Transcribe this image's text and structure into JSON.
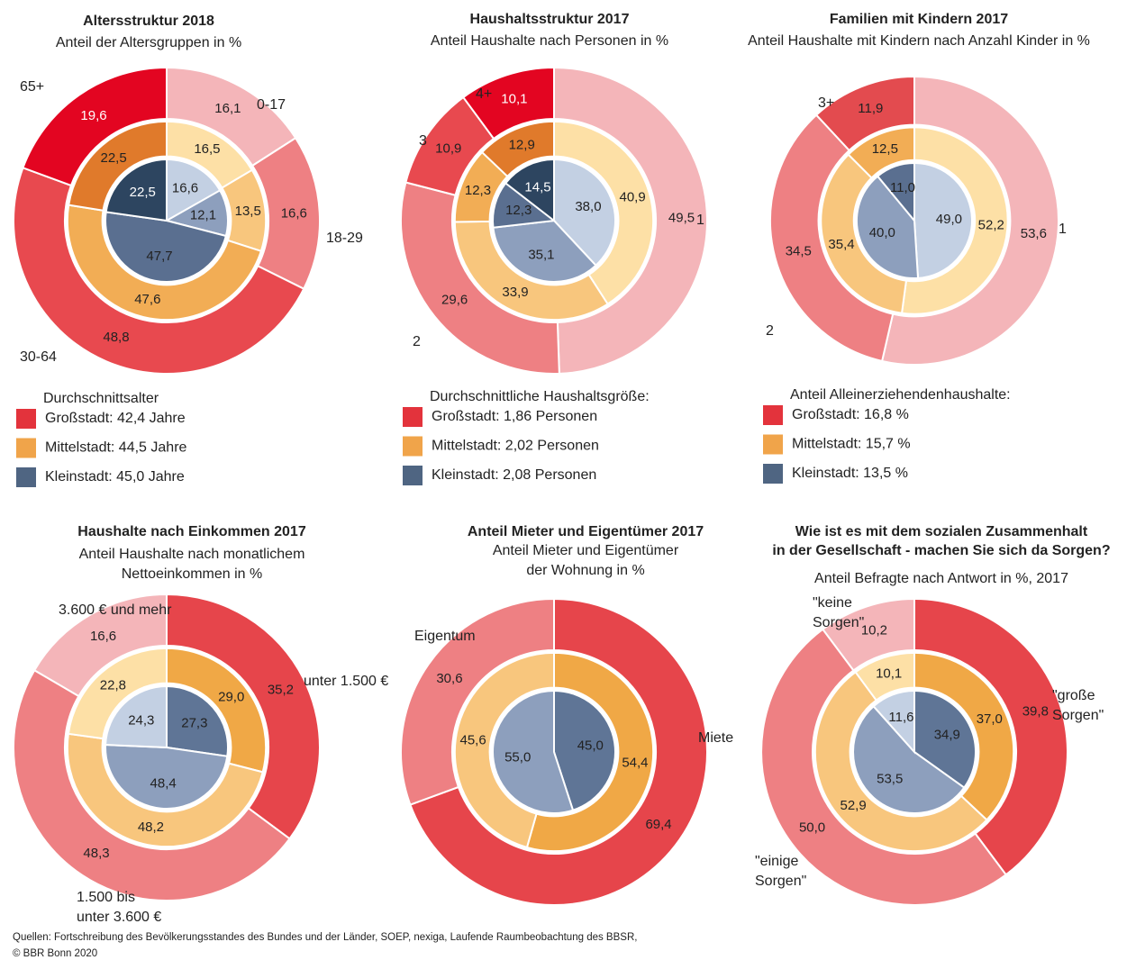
{
  "chart_data": [
    {
      "type": "pie",
      "title": "Altersstruktur 2018",
      "subtitle": "Anteil der Altersgruppen in %",
      "categories": [
        "0-17",
        "18-29",
        "30-64",
        "65+"
      ],
      "legend_title": "Durchschnittsalter",
      "series": [
        {
          "name": "Großstadt: 42,4 Jahre",
          "color": "#e3333c",
          "colors": [
            "#f4b5b9",
            "#ee8083",
            "#e8494f",
            "#e30521"
          ],
          "values": [
            16.1,
            16.6,
            48.8,
            19.6
          ],
          "value_labels": [
            "16,1",
            "16,6",
            "48,8",
            "19,6"
          ]
        },
        {
          "name": "Mittelstadt: 44,5 Jahre",
          "color": "#f0a44a",
          "colors": [
            "#fde0a6",
            "#f8c67d",
            "#f2ad55",
            "#e07a2b"
          ],
          "values": [
            16.5,
            13.5,
            47.6,
            22.5
          ],
          "value_labels": [
            "16,5",
            "13,5",
            "47,6",
            "22,5"
          ]
        },
        {
          "name": "Kleinstadt: 45,0 Jahre",
          "color": "#4f6582",
          "colors": [
            "#c3d0e3",
            "#8d9fbd",
            "#5a6f90",
            "#2d4560"
          ],
          "values": [
            16.6,
            12.1,
            47.7,
            22.5
          ],
          "value_labels": [
            "16,6",
            "12,1",
            "47,7",
            "22,5"
          ]
        }
      ]
    },
    {
      "type": "pie",
      "title": "Haushaltsstruktur 2017",
      "subtitle": "Anteil Haushalte nach Personen in %",
      "categories": [
        "1",
        "2",
        "3",
        "4+"
      ],
      "legend_title": "Durchschnittliche Haushaltsgröße:",
      "series": [
        {
          "name": "Großstadt: 1,86 Personen",
          "color": "#e3333c",
          "colors": [
            "#f4b5b9",
            "#ee8083",
            "#e8494f",
            "#e30521"
          ],
          "values": [
            49.5,
            29.6,
            10.9,
            10.1
          ],
          "value_labels": [
            "49,5",
            "29,6",
            "10,9",
            "10,1"
          ]
        },
        {
          "name": "Mittelstadt: 2,02 Personen",
          "color": "#f0a44a",
          "colors": [
            "#fde0a6",
            "#f8c67d",
            "#f2ad55",
            "#e07a2b"
          ],
          "values": [
            40.9,
            33.9,
            12.3,
            12.9
          ],
          "value_labels": [
            "40,9",
            "33,9",
            "12,3",
            "12,9"
          ]
        },
        {
          "name": "Kleinstadt: 2,08 Personen",
          "color": "#4f6582",
          "colors": [
            "#c3d0e3",
            "#8d9fbd",
            "#5a6f90",
            "#2d4560"
          ],
          "values": [
            38.0,
            35.1,
            12.3,
            14.5
          ],
          "value_labels": [
            "38,0",
            "35,1",
            "12,3",
            "14,5"
          ]
        }
      ]
    },
    {
      "type": "pie",
      "title": "Familien mit Kindern 2017",
      "subtitle": "Anteil Haushalte mit Kindern nach Anzahl Kinder in %",
      "categories": [
        "1",
        "2",
        "3+"
      ],
      "legend_title": "Anteil Alleinerziehendenhaushalte:",
      "series": [
        {
          "name": "Großstadt: 16,8 %",
          "color": "#e3333c",
          "colors": [
            "#f4b5b9",
            "#ee8083",
            "#e34b4f"
          ],
          "values": [
            53.6,
            34.5,
            11.9
          ],
          "value_labels": [
            "53,6",
            "34,5",
            "11,9"
          ]
        },
        {
          "name": "Mittelstadt: 15,7 %",
          "color": "#f0a44a",
          "colors": [
            "#fde0a6",
            "#f8c67d",
            "#f2ad55"
          ],
          "values": [
            52.2,
            35.4,
            12.5
          ],
          "value_labels": [
            "52,2",
            "35,4",
            "12,5"
          ]
        },
        {
          "name": "Kleinstadt: 13,5 %",
          "color": "#4f6582",
          "colors": [
            "#c3d0e3",
            "#8d9fbd",
            "#5a6f90"
          ],
          "values": [
            49.0,
            40.0,
            11.0
          ],
          "value_labels": [
            "49,0",
            "40,0",
            "11,0"
          ]
        }
      ]
    },
    {
      "type": "pie",
      "title": "Haushalte nach Einkommen 2017",
      "subtitle": [
        "Anteil Haushalte nach monatlichem",
        "Nettoeinkommen in %"
      ],
      "categories": [
        "unter 1.500 €",
        [
          "1.500 bis",
          "unter 3.600 €"
        ],
        "3.600 € und mehr"
      ],
      "series": [
        {
          "colors": [
            "#e6454b",
            "#ee8083",
            "#f4b5b9"
          ],
          "values": [
            35.2,
            48.3,
            16.6
          ],
          "value_labels": [
            "35,2",
            "48,3",
            "16,6"
          ]
        },
        {
          "colors": [
            "#f0a846",
            "#f8c67d",
            "#fde0a6"
          ],
          "values": [
            29.0,
            48.2,
            22.8
          ],
          "value_labels": [
            "29,0",
            "48,2",
            "22,8"
          ]
        },
        {
          "colors": [
            "#5f7596",
            "#8d9fbd",
            "#c3d0e3"
          ],
          "values": [
            27.3,
            48.4,
            24.3
          ],
          "value_labels": [
            "27,3",
            "48,4",
            "24,3"
          ]
        }
      ]
    },
    {
      "type": "pie",
      "title": "Anteil Mieter und Eigentümer 2017",
      "subtitle": [
        "Anteil Mieter und Eigentümer",
        "der Wohnung in %"
      ],
      "categories": [
        "Miete",
        "Eigentum"
      ],
      "series": [
        {
          "colors": [
            "#e6454b",
            "#ee8083"
          ],
          "values": [
            69.4,
            30.6
          ],
          "value_labels": [
            "69,4",
            "30,6"
          ]
        },
        {
          "colors": [
            "#f0a846",
            "#f8c67d"
          ],
          "values": [
            54.4,
            45.6
          ],
          "value_labels": [
            "54,4",
            "45,6"
          ]
        },
        {
          "colors": [
            "#5f7596",
            "#8d9fbd"
          ],
          "values": [
            45.0,
            55.0
          ],
          "value_labels": [
            "45,0",
            "55,0"
          ]
        }
      ]
    },
    {
      "type": "pie",
      "title": [
        "Wie ist es mit dem sozialen Zusammenhalt",
        "in der Gesellschaft - machen Sie sich da Sorgen?"
      ],
      "subtitle": "Anteil Befragte nach Antwort in %, 2017",
      "categories": [
        [
          "\"große",
          "Sorgen\""
        ],
        [
          "\"einige",
          "Sorgen\""
        ],
        [
          "\"keine",
          "Sorgen\""
        ]
      ],
      "series": [
        {
          "colors": [
            "#e6454b",
            "#ee8083",
            "#f4b5b9"
          ],
          "values": [
            39.8,
            50.0,
            10.2
          ],
          "value_labels": [
            "39,8",
            "50,0",
            "10,2"
          ]
        },
        {
          "colors": [
            "#f0a846",
            "#f8c67d",
            "#fde0a6"
          ],
          "values": [
            37.0,
            52.9,
            10.1
          ],
          "value_labels": [
            "37,0",
            "52,9",
            "10,1"
          ]
        },
        {
          "colors": [
            "#5f7596",
            "#8d9fbd",
            "#c3d0e3"
          ],
          "values": [
            34.9,
            53.5,
            11.6
          ],
          "value_labels": [
            "34,9",
            "53,5",
            "11,6"
          ]
        }
      ]
    }
  ],
  "source": [
    "Quellen: Fortschreibung des Bevölkerungsstandes des Bundes und der Länder, SOEP, nexiga, Laufende Raumbeobachtung des BBSR,",
    "© BBR Bonn 2020"
  ]
}
